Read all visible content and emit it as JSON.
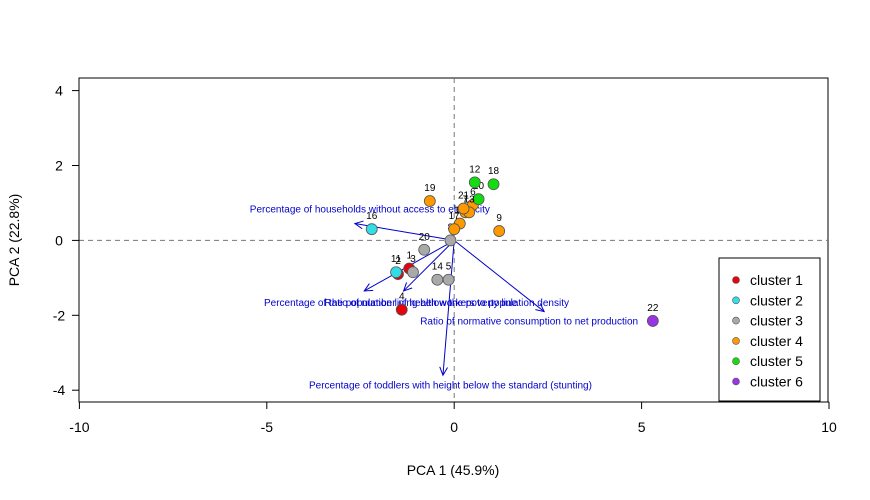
{
  "chart_data": {
    "type": "scatter",
    "xlabel": "PCA 1 (45.9%)",
    "ylabel": "PCA 2 (22.8%)",
    "xlim": [
      -10,
      10
    ],
    "ylim": [
      -4.3,
      4.3
    ],
    "xticks": [
      -10,
      -5,
      0,
      5,
      10
    ],
    "yticks": [
      -4,
      -2,
      0,
      2,
      4
    ],
    "reference_lines": "dashed lines at x=0 and y=0",
    "legend_position": "bottom-right",
    "clusters": [
      {
        "name": "cluster 1",
        "color": "#e8000b"
      },
      {
        "name": "cluster 2",
        "color": "#33dde6"
      },
      {
        "name": "cluster 3",
        "color": "#a9a9a9"
      },
      {
        "name": "cluster 4",
        "color": "#ff9900"
      },
      {
        "name": "cluster 5",
        "color": "#11dd11"
      },
      {
        "name": "cluster 6",
        "color": "#9933e6"
      }
    ],
    "points": [
      {
        "label": "1",
        "x": -1.2,
        "y": -0.75,
        "cluster": 0
      },
      {
        "label": "2",
        "x": -1.5,
        "y": -0.9,
        "cluster": 0
      },
      {
        "label": "3",
        "x": -1.1,
        "y": -0.85,
        "cluster": 2
      },
      {
        "label": "4",
        "x": -1.4,
        "y": -1.85,
        "cluster": 0
      },
      {
        "label": "5",
        "x": -0.15,
        "y": -1.05,
        "cluster": 2
      },
      {
        "label": "6",
        "x": 0.5,
        "y": 0.95,
        "cluster": 3
      },
      {
        "label": "7",
        "x": 0.3,
        "y": 0.75,
        "cluster": 3
      },
      {
        "label": "8",
        "x": -0.1,
        "y": 0.0,
        "cluster": 2
      },
      {
        "label": "9",
        "x": 1.2,
        "y": 0.25,
        "cluster": 3
      },
      {
        "label": "10",
        "x": 0.65,
        "y": 1.1,
        "cluster": 4
      },
      {
        "label": "11",
        "x": -1.55,
        "y": -0.85,
        "cluster": 1
      },
      {
        "label": "12",
        "x": 0.55,
        "y": 1.55,
        "cluster": 4
      },
      {
        "label": "13",
        "x": 0.4,
        "y": 0.75,
        "cluster": 3
      },
      {
        "label": "14",
        "x": -0.45,
        "y": -1.05,
        "cluster": 2
      },
      {
        "label": "15",
        "x": 0.15,
        "y": 0.45,
        "cluster": 3
      },
      {
        "label": "16",
        "x": -2.2,
        "y": 0.3,
        "cluster": 1
      },
      {
        "label": "17",
        "x": 0.0,
        "y": 0.3,
        "cluster": 3
      },
      {
        "label": "18",
        "x": 1.05,
        "y": 1.5,
        "cluster": 4
      },
      {
        "label": "19",
        "x": -0.65,
        "y": 1.05,
        "cluster": 3
      },
      {
        "label": "20",
        "x": -0.8,
        "y": -0.25,
        "cluster": 2
      },
      {
        "label": "21",
        "x": 0.25,
        "y": 0.85,
        "cluster": 3
      },
      {
        "label": "22",
        "x": 5.3,
        "y": -2.15,
        "cluster": 5
      }
    ],
    "loadings": [
      {
        "label": "Percentage of households without access to electricity",
        "x": -2.65,
        "y": 0.45,
        "label_x": -2.25,
        "label_y": 0.75
      },
      {
        "label": "Percentage of the population living below the poverty line",
        "x": -2.4,
        "y": -1.35,
        "label_x": -1.7,
        "label_y": -1.75
      },
      {
        "label": "Ratio of number of health workers to population density",
        "x": -1.35,
        "y": -1.35,
        "label_x": -0.2,
        "label_y": -1.75
      },
      {
        "label": "Ratio of normative consumption to net production",
        "x": 2.4,
        "y": -1.9,
        "label_x": 2.0,
        "label_y": -2.25
      },
      {
        "label": "Percentage of toddlers with height below the standard (stunting)",
        "x": -0.3,
        "y": -3.6,
        "label_x": -0.1,
        "label_y": -3.95
      }
    ]
  }
}
